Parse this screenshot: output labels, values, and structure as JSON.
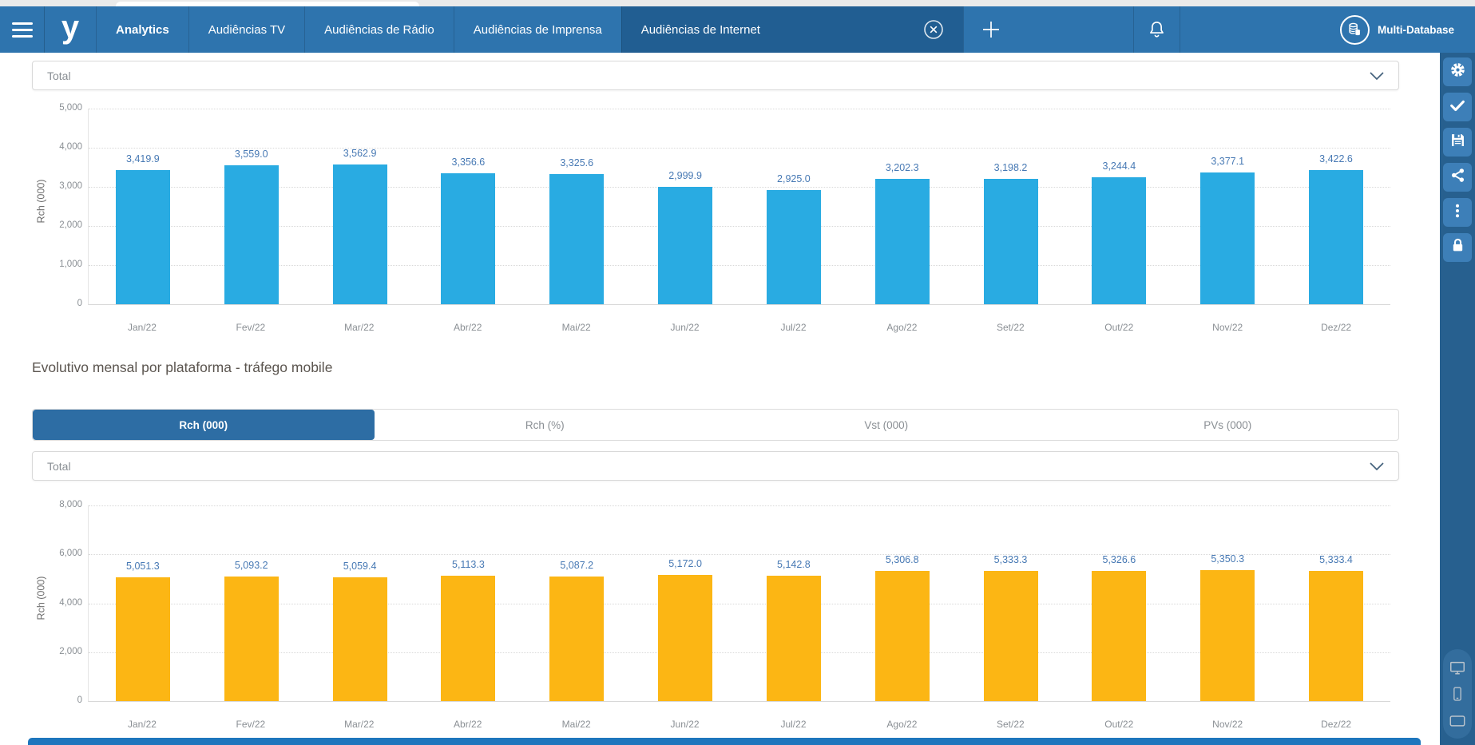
{
  "topbar": {
    "logo_text": "y",
    "tabs": [
      {
        "label": "Analytics"
      },
      {
        "label": "Audiências TV"
      },
      {
        "label": "Audiências de Rádio"
      },
      {
        "label": "Audiências de Imprensa"
      },
      {
        "label": "Audiências de Internet"
      }
    ],
    "active_tab_index": 4,
    "user_label": "Multi-Database"
  },
  "filters": {
    "total_label_1": "Total",
    "total_label_2": "Total"
  },
  "section": {
    "title": "Evolutivo mensal por plataforma - tráfego mobile",
    "metric_tabs": [
      {
        "label": "Rch (000)",
        "active": true
      },
      {
        "label": "Rch (%)",
        "active": false
      },
      {
        "label": "Vst (000)",
        "active": false
      },
      {
        "label": "PVs (000)",
        "active": false
      }
    ]
  },
  "chart_data": [
    {
      "type": "bar",
      "title": "",
      "categories": [
        "Jan/22",
        "Fev/22",
        "Mar/22",
        "Abr/22",
        "Mai/22",
        "Jun/22",
        "Jul/22",
        "Ago/22",
        "Set/22",
        "Out/22",
        "Nov/22",
        "Dez/22"
      ],
      "values": [
        3419.9,
        3559.0,
        3562.9,
        3356.6,
        3325.6,
        2999.9,
        2925.0,
        3202.3,
        3198.2,
        3244.4,
        3377.1,
        3422.6
      ],
      "xlabel": "",
      "ylabel": "Rch (000)",
      "ylim": [
        0,
        5000
      ],
      "yticks": [
        0,
        1000,
        2000,
        3000,
        4000,
        5000
      ],
      "grid": "dotted-horizontal",
      "legend": "none",
      "bar_color": "#29abe2",
      "label_color": "#4779b4"
    },
    {
      "type": "bar",
      "title": "",
      "categories": [
        "Jan/22",
        "Fev/22",
        "Mar/22",
        "Abr/22",
        "Mai/22",
        "Jun/22",
        "Jul/22",
        "Ago/22",
        "Set/22",
        "Out/22",
        "Nov/22",
        "Dez/22"
      ],
      "values": [
        5051.3,
        5093.2,
        5059.4,
        5113.3,
        5087.2,
        5172.0,
        5142.8,
        5306.8,
        5333.3,
        5326.6,
        5350.3,
        5333.4
      ],
      "xlabel": "",
      "ylabel": "Rch (000)",
      "ylim": [
        0,
        8000
      ],
      "yticks": [
        0,
        2000,
        4000,
        6000,
        8000
      ],
      "grid": "dotted-horizontal",
      "legend": "none",
      "bar_color": "#fcb614",
      "label_color": "#4779b4"
    }
  ],
  "sidebar": {
    "icons": [
      "gear",
      "check",
      "save",
      "share",
      "more-vertical",
      "lock"
    ],
    "device_icons": [
      "desktop",
      "mobile",
      "tablet"
    ]
  },
  "side_tools": {
    "icons": [
      "list",
      "expand"
    ]
  },
  "colors": {
    "topbar": "#2e74ae",
    "topbar_active_tab": "#215e92",
    "sidebar_bg": "#27608f",
    "sidebar_button": "#3d7fb8",
    "accent": "#2d6da4",
    "bar_blue": "#29abe2",
    "bar_yellow": "#fcb614",
    "tool_red": "#c11833",
    "bottom_strip": "#1e76bd"
  }
}
